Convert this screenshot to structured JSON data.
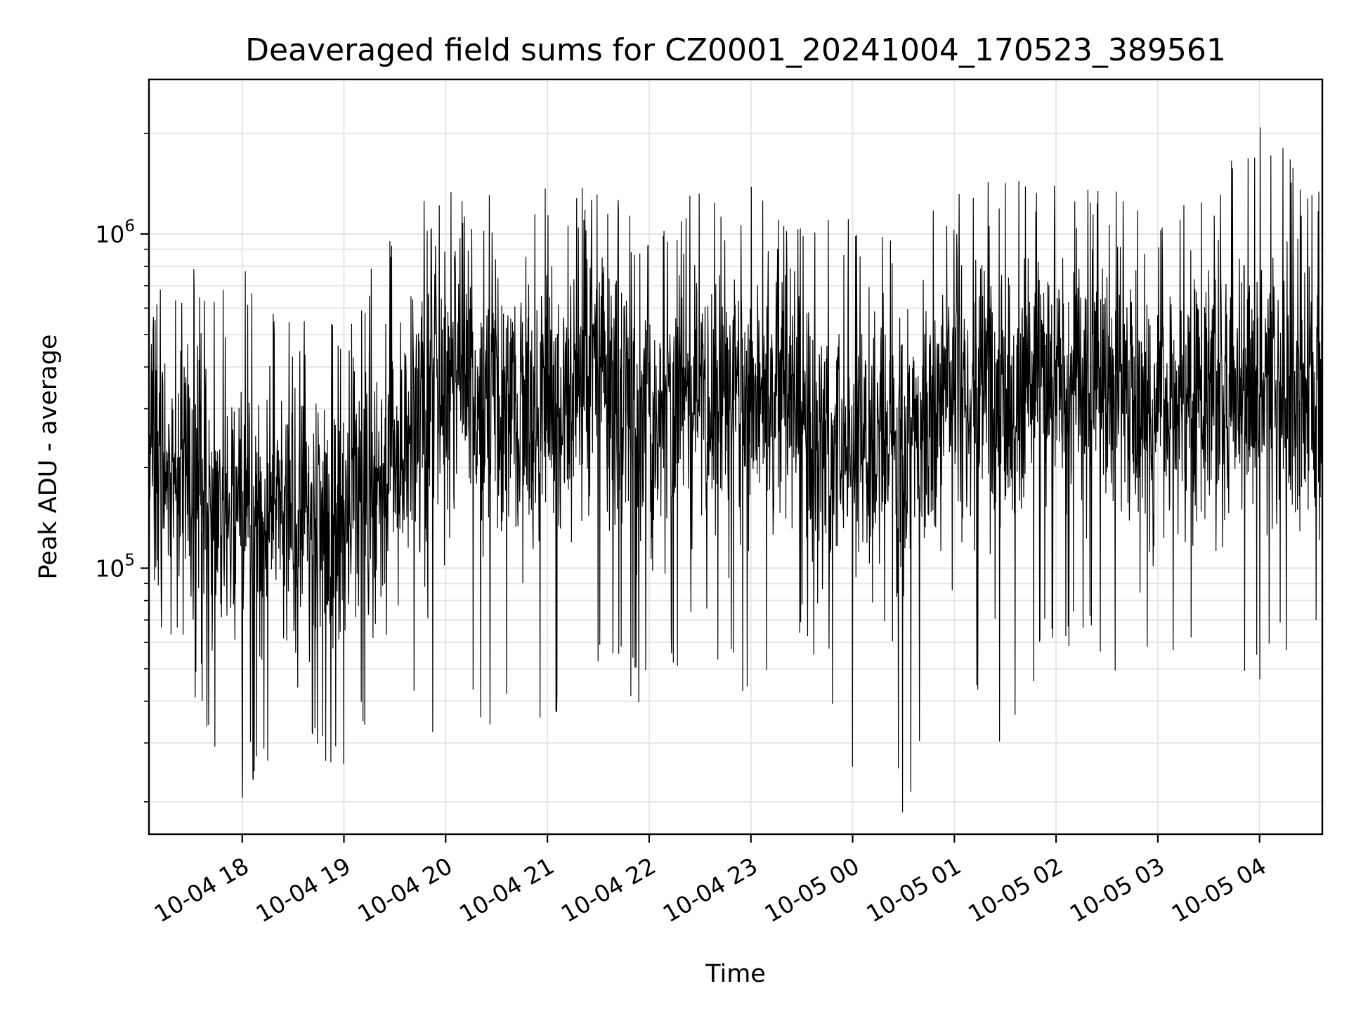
{
  "chart_data": {
    "type": "line",
    "title": "Deaveraged field sums for CZ0001_20241004_170523_389561",
    "xlabel": "Time",
    "ylabel": "Peak ADU - average",
    "x_axis": {
      "type": "datetime",
      "range": [
        "2024-10-04 17:05",
        "2024-10-05 04:37"
      ],
      "tick_labels": [
        "10-04 18",
        "10-04 19",
        "10-04 20",
        "10-04 21",
        "10-04 22",
        "10-04 23",
        "10-05 00",
        "10-05 01",
        "10-05 02",
        "10-05 03",
        "10-05 04"
      ],
      "tick_values": [
        "2024-10-04 18:00",
        "2024-10-04 19:00",
        "2024-10-04 20:00",
        "2024-10-04 21:00",
        "2024-10-04 22:00",
        "2024-10-04 23:00",
        "2024-10-05 00:00",
        "2024-10-05 01:00",
        "2024-10-05 02:00",
        "2024-10-05 03:00",
        "2024-10-05 04:00"
      ]
    },
    "y_axis": {
      "scale": "log",
      "range": [
        16000,
        2900000
      ],
      "tick_labels": [
        {
          "base": "10",
          "exp": "5",
          "value": 100000
        },
        {
          "base": "10",
          "exp": "6",
          "value": 1000000
        }
      ]
    },
    "grid": true,
    "line_color": "#000000",
    "series": [
      {
        "values_approx_envelope": [
          {
            "x": "2024-10-04 17:05",
            "typical": 230000,
            "min": 75000,
            "max": 640000
          },
          {
            "x": "2024-10-04 17:30",
            "typical": 170000,
            "min": 40000,
            "max": 810000
          },
          {
            "x": "2024-10-04 18:00",
            "typical": 140000,
            "min": 20000,
            "max": 800000
          },
          {
            "x": "2024-10-04 18:30",
            "typical": 150000,
            "min": 33000,
            "max": 570000
          },
          {
            "x": "2024-10-04 19:00",
            "typical": 140000,
            "min": 23000,
            "max": 530000
          },
          {
            "x": "2024-10-04 19:30",
            "typical": 200000,
            "min": 31000,
            "max": 1200000
          },
          {
            "x": "2024-10-04 20:00",
            "typical": 400000,
            "min": 31000,
            "max": 1400000
          },
          {
            "x": "2024-10-04 20:30",
            "typical": 330000,
            "min": 33000,
            "max": 1300000
          },
          {
            "x": "2024-10-04 21:00",
            "typical": 310000,
            "min": 30000,
            "max": 1400000
          },
          {
            "x": "2024-10-04 21:30",
            "typical": 420000,
            "min": 47000,
            "max": 1400000
          },
          {
            "x": "2024-10-04 22:00",
            "typical": 280000,
            "min": 37000,
            "max": 1100000
          },
          {
            "x": "2024-10-04 22:30",
            "typical": 330000,
            "min": 60000,
            "max": 1400000
          },
          {
            "x": "2024-10-04 23:00",
            "typical": 360000,
            "min": 32000,
            "max": 1400000
          },
          {
            "x": "2024-10-04 23:30",
            "typical": 300000,
            "min": 60000,
            "max": 1300000
          },
          {
            "x": "2024-10-05 00:00",
            "typical": 220000,
            "min": 23000,
            "max": 1100000
          },
          {
            "x": "2024-10-05 00:30",
            "typical": 240000,
            "min": 18000,
            "max": 1050000
          },
          {
            "x": "2024-10-05 01:00",
            "typical": 330000,
            "min": 42000,
            "max": 1300000
          },
          {
            "x": "2024-10-05 01:30",
            "typical": 340000,
            "min": 28000,
            "max": 1500000
          },
          {
            "x": "2024-10-05 02:00",
            "typical": 360000,
            "min": 60000,
            "max": 1400000
          },
          {
            "x": "2024-10-05 02:30",
            "typical": 350000,
            "min": 48000,
            "max": 1400000
          },
          {
            "x": "2024-10-05 03:00",
            "typical": 300000,
            "min": 48000,
            "max": 1100000
          },
          {
            "x": "2024-10-05 03:30",
            "typical": 320000,
            "min": 55000,
            "max": 1400000
          },
          {
            "x": "2024-10-05 04:00",
            "typical": 380000,
            "min": 45000,
            "max": 2300000
          },
          {
            "x": "2024-10-05 04:37",
            "typical": 280000,
            "min": 65000,
            "max": 1400000
          }
        ]
      }
    ]
  }
}
